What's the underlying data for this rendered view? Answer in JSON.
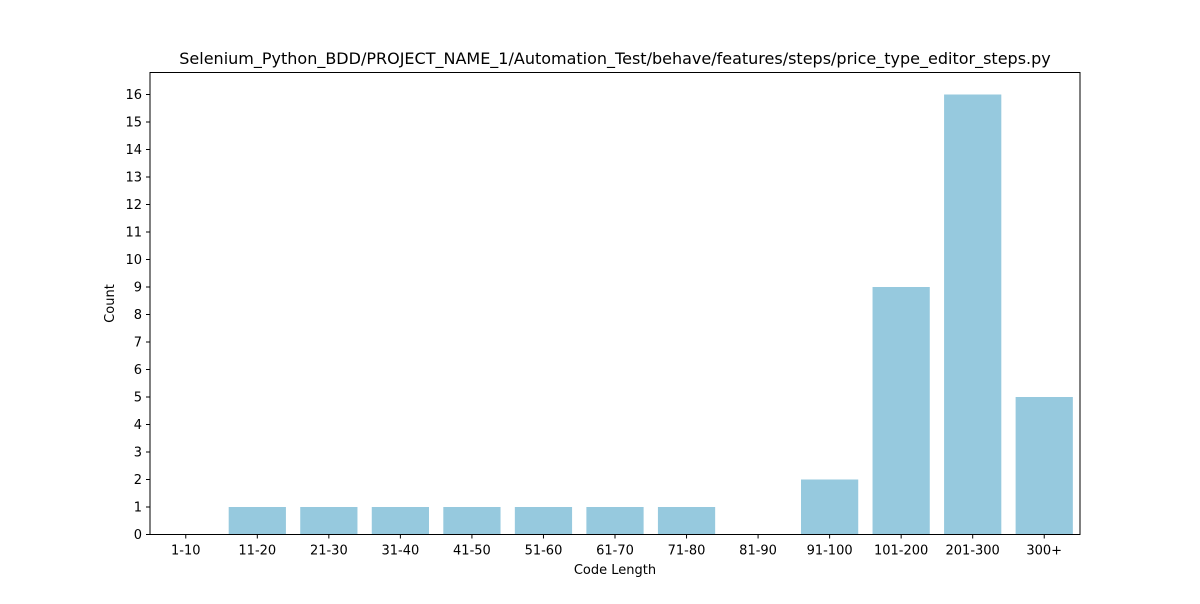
{
  "chart_data": {
    "type": "bar",
    "title": "Selenium_Python_BDD/PROJECT_NAME_1/Automation_Test/behave/features/steps/price_type_editor_steps.py",
    "xlabel": "Code Length",
    "ylabel": "Count",
    "categories": [
      "1-10",
      "11-20",
      "21-30",
      "31-40",
      "41-50",
      "51-60",
      "61-70",
      "71-80",
      "81-90",
      "91-100",
      "101-200",
      "201-300",
      "300+"
    ],
    "values": [
      0,
      1,
      1,
      1,
      1,
      1,
      1,
      1,
      0,
      2,
      9,
      16,
      5
    ],
    "yticks": [
      0,
      1,
      2,
      3,
      4,
      5,
      6,
      7,
      8,
      9,
      10,
      11,
      12,
      13,
      14,
      15,
      16
    ],
    "ylim": [
      0,
      16.8
    ],
    "grid": false,
    "legend": "none",
    "bar_color": "#96c9de",
    "axis_color": "#000000"
  }
}
